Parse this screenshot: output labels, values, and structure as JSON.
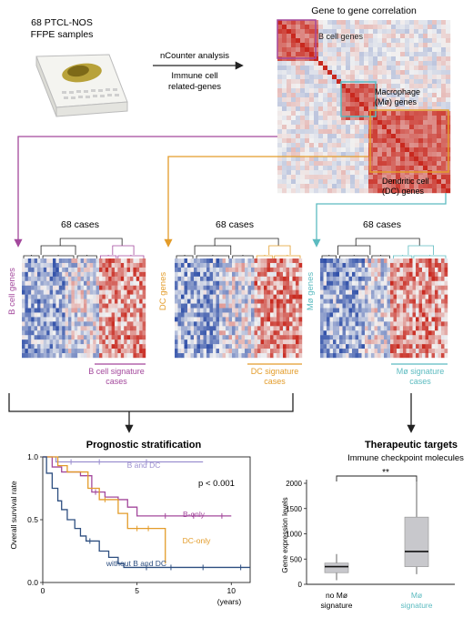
{
  "title": "",
  "colors": {
    "b_cell": "#a3489c",
    "dc": "#e39c2a",
    "macrophage": "#5cbbc0",
    "arrow": "#222222",
    "curve_bdc": "#9b8fcf",
    "curve_b_only": "#a3489c",
    "curve_dc_only": "#e39c2a",
    "curve_without": "#2e4f80",
    "heat_low": "#2f4fa8",
    "heat_mid": "#f2f2f2",
    "heat_high": "#c8281e",
    "box_fill": "#c8c8cc"
  },
  "icons": {
    "sample": "ffpe-slide-icon"
  },
  "top": {
    "sample_label_1": "68 PTCL-NOS",
    "sample_label_2": "FFPE samples",
    "arrow_label_top": "nCounter analysis",
    "arrow_label_bottom_1": "Immune cell",
    "arrow_label_bottom_2": "related-genes",
    "corr_title": "Gene to gene correlation",
    "b_cell_genes": "B cell genes",
    "mo_genes_1": "Macrophage",
    "mo_genes_2": "(Mø) genes",
    "dc_genes_1": "Dendritic cell",
    "dc_genes_2": "(DC) genes"
  },
  "heatmaps": [
    {
      "id": "b",
      "cases": "68 cases",
      "side_label": "B cell genes",
      "sig_1": "B cell signature",
      "sig_2": "cases"
    },
    {
      "id": "dc",
      "cases": "68 cases",
      "side_label": "DC genes",
      "sig_1": "DC signature",
      "sig_2": "cases"
    },
    {
      "id": "mo",
      "cases": "68 cases",
      "side_label": "Mø genes",
      "sig_1": "Mø signature",
      "sig_2": "cases"
    }
  ],
  "prognostic": {
    "title": "Prognostic stratification",
    "ylabel": "Overall survival rate",
    "x_unit": "(years)",
    "pvalue": "p < 0.001"
  },
  "therapeutic": {
    "title": "Therapeutic targets",
    "subtitle": "Immune checkpoint molecules",
    "ylabel": "Gene expression levels",
    "significance": "**",
    "cat1_line1": "no Mø",
    "cat1_line2": "signature",
    "cat2_line1": "Mø",
    "cat2_line2": "signature"
  },
  "chart_data": [
    {
      "type": "line",
      "title": "Prognostic stratification",
      "xlabel": "(years)",
      "ylabel": "Overall survival rate",
      "xlim": [
        0,
        11
      ],
      "ylim": [
        0,
        1.0
      ],
      "x_ticks": [
        0,
        5,
        10
      ],
      "y_ticks": [
        0.0,
        0.5,
        1.0
      ],
      "annotation": "p < 0.001",
      "series": [
        {
          "name": "B and DC",
          "color": "#9b8fcf",
          "points": [
            [
              0,
              1.0
            ],
            [
              0.5,
              1.0
            ],
            [
              0.7,
              0.96
            ],
            [
              8.5,
              0.96
            ]
          ],
          "censors": [
            [
              1.5,
              0.96
            ],
            [
              3.0,
              0.96
            ],
            [
              5.5,
              0.96
            ]
          ]
        },
        {
          "name": "B-only",
          "color": "#a3489c",
          "points": [
            [
              0,
              1.0
            ],
            [
              0.5,
              0.92
            ],
            [
              1.0,
              0.88
            ],
            [
              2.0,
              0.85
            ],
            [
              2.6,
              0.72
            ],
            [
              3.3,
              0.68
            ],
            [
              4.0,
              0.66
            ],
            [
              4.5,
              0.6
            ],
            [
              5.0,
              0.53
            ],
            [
              10.0,
              0.53
            ]
          ],
          "censors": [
            [
              2.8,
              0.72
            ],
            [
              6.5,
              0.53
            ],
            [
              8.0,
              0.53
            ],
            [
              9.5,
              0.53
            ]
          ]
        },
        {
          "name": "DC-only",
          "color": "#e39c2a",
          "points": [
            [
              0,
              1.0
            ],
            [
              0.8,
              0.93
            ],
            [
              1.3,
              0.88
            ],
            [
              2.4,
              0.75
            ],
            [
              3.0,
              0.66
            ],
            [
              4.0,
              0.55
            ],
            [
              4.5,
              0.43
            ],
            [
              6.0,
              0.43
            ],
            [
              6.5,
              0.15
            ]
          ],
          "censors": [
            [
              3.3,
              0.66
            ],
            [
              5.0,
              0.43
            ],
            [
              5.6,
              0.43
            ]
          ]
        },
        {
          "name": "without B and DC",
          "color": "#2e4f80",
          "points": [
            [
              0,
              1.0
            ],
            [
              0.2,
              0.87
            ],
            [
              0.5,
              0.75
            ],
            [
              0.8,
              0.65
            ],
            [
              1.0,
              0.58
            ],
            [
              1.3,
              0.5
            ],
            [
              1.7,
              0.43
            ],
            [
              2.0,
              0.37
            ],
            [
              2.3,
              0.33
            ],
            [
              3.0,
              0.25
            ],
            [
              3.5,
              0.2
            ],
            [
              4.0,
              0.15
            ],
            [
              4.3,
              0.12
            ],
            [
              11.0,
              0.12
            ]
          ],
          "censors": [
            [
              2.5,
              0.33
            ],
            [
              5.5,
              0.12
            ],
            [
              6.8,
              0.12
            ],
            [
              8.5,
              0.12
            ],
            [
              10.5,
              0.12
            ]
          ]
        }
      ]
    },
    {
      "type": "box",
      "title": "Therapeutic targets",
      "ylabel": "Gene expression levels",
      "ylim": [
        0,
        2000
      ],
      "y_ticks": [
        0,
        500,
        1000,
        1500,
        2000
      ],
      "categories": [
        "no Mø signature",
        "Mø signature"
      ],
      "boxes": [
        {
          "min": 80,
          "q1": 230,
          "median": 350,
          "q3": 420,
          "max": 600
        },
        {
          "min": 200,
          "q1": 350,
          "median": 650,
          "q3": 1330,
          "max": 2050
        }
      ],
      "annotation": "**"
    }
  ]
}
